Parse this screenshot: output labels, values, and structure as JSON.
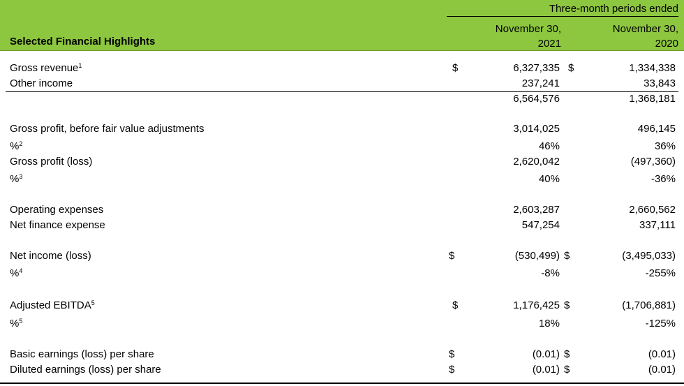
{
  "header": {
    "super_title": "Three-month periods ended",
    "title": "Selected Financial Highlights",
    "col1_line1": "November 30,",
    "col1_line2": "2021",
    "col2_line1": "November 30,",
    "col2_line2": "2020",
    "background_color": "#8dc63f"
  },
  "rows": {
    "gross_revenue": {
      "label": "Gross revenue",
      "sup": "1",
      "cur1": "$",
      "v1": "6,327,335",
      "cur2": "$",
      "v2": "1,334,338"
    },
    "other_income": {
      "label": "Other income",
      "v1": "237,241",
      "v2": "33,843"
    },
    "total": {
      "v1": "6,564,576",
      "v2": "1,368,181"
    },
    "gross_profit_before": {
      "label": "Gross profit, before fair value adjustments",
      "v1": "3,014,025",
      "v2": "496,145"
    },
    "pct2": {
      "label": "%",
      "sup": "2",
      "v1": "46%",
      "v2": "36%"
    },
    "gross_profit_loss": {
      "label": "Gross profit (loss)",
      "v1": "2,620,042",
      "v2": "(497,360)"
    },
    "pct3": {
      "label": "%",
      "sup": "3",
      "v1": "40%",
      "v2": "-36%"
    },
    "operating_expenses": {
      "label": "Operating expenses",
      "v1": "2,603,287",
      "v2": "2,660,562"
    },
    "net_finance_expense": {
      "label": "Net finance expense",
      "v1": "547,254",
      "v2": "337,111"
    },
    "net_income": {
      "label": "Net income (loss)",
      "cur1": "$",
      "v1": "(530,499)",
      "cur2": "$",
      "v2": "(3,495,033)"
    },
    "pct4": {
      "label": "%",
      "sup": "4",
      "v1": "-8%",
      "v2": "-255%"
    },
    "adjusted_ebitda": {
      "label": "Adjusted EBITDA",
      "sup": "5",
      "cur1": "$",
      "v1": "1,176,425",
      "cur2": "$",
      "v2": "(1,706,881)"
    },
    "pct5": {
      "label": "%",
      "sup": "5",
      "v1": "18%",
      "v2": "-125%"
    },
    "basic_eps": {
      "label": "Basic earnings (loss) per share",
      "cur1": "$",
      "v1": "(0.01)",
      "cur2": "$",
      "v2": "(0.01)"
    },
    "diluted_eps": {
      "label": "Diluted earnings (loss) per share",
      "cur1": "$",
      "v1": "(0.01)",
      "cur2": "$",
      "v2": "(0.01)"
    }
  }
}
